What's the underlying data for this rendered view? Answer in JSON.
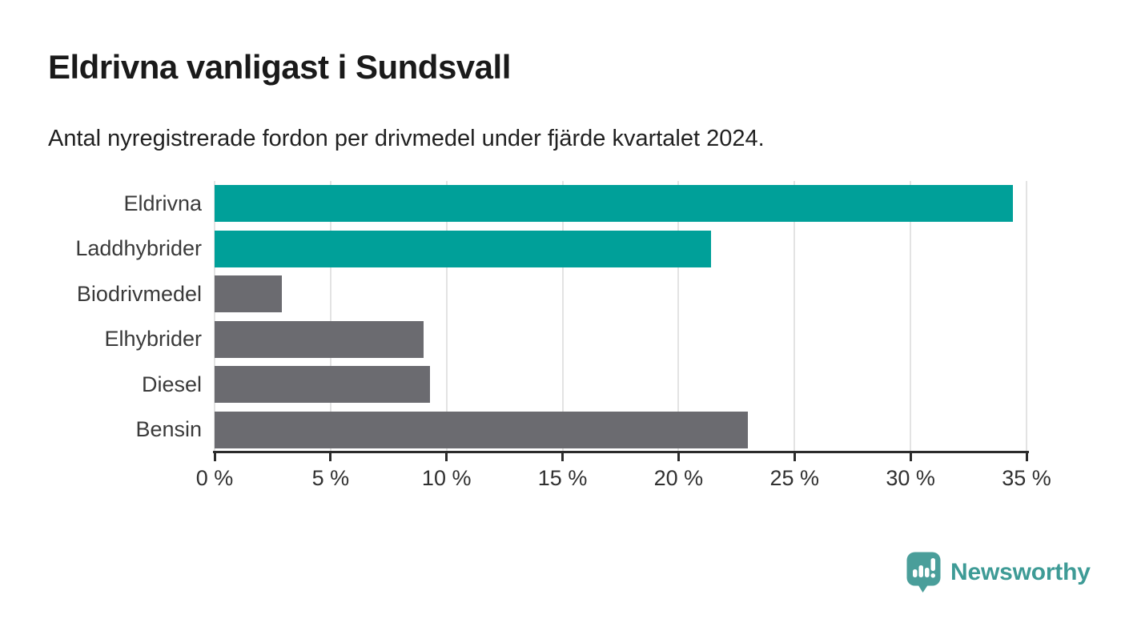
{
  "header": {
    "title": "Eldrivna vanligast i Sundsvall",
    "subtitle": "Antal nyregistrerade fordon per drivmedel under fjärde kvartalet 2024."
  },
  "chart_data": {
    "type": "bar",
    "orientation": "horizontal",
    "title": "Eldrivna vanligast i Sundsvall",
    "subtitle": "Antal nyregistrerade fordon per drivmedel under fjärde kvartalet 2024.",
    "categories": [
      "Eldrivna",
      "Laddhybrider",
      "Biodrivmedel",
      "Elhybrider",
      "Diesel",
      "Bensin"
    ],
    "values": [
      34.4,
      21.4,
      2.9,
      9.0,
      9.3,
      23.0
    ],
    "unit": "%",
    "xlabel": "",
    "ylabel": "",
    "xlim": [
      0,
      35
    ],
    "x_ticks": [
      0,
      5,
      10,
      15,
      20,
      25,
      30,
      35
    ],
    "x_tick_labels": [
      "0 %",
      "5 %",
      "10 %",
      "15 %",
      "20 %",
      "25 %",
      "30 %",
      "35 %"
    ],
    "grid": true,
    "legend": "none",
    "bar_colors": [
      "#00A099",
      "#00A099",
      "#6B6B70",
      "#6B6B70",
      "#6B6B70",
      "#6B6B70"
    ],
    "highlight_color": "#00A099",
    "default_color": "#6B6B70"
  },
  "footer": {
    "brand": "Newsworthy",
    "brand_color": "#3E9B96",
    "logo_icon": "speech-bubble-bar-chart-icon",
    "logo_icon_color": "#4A9E9A"
  },
  "colors": {
    "background": "#FFFFFF",
    "title_text": "#1A1A1A",
    "subtitle_text": "#212121",
    "axis_label_text": "#303030",
    "category_label_text": "#3A3A3A",
    "gridline": "#E3E3E3",
    "axis_line": "#2B2B2B"
  }
}
